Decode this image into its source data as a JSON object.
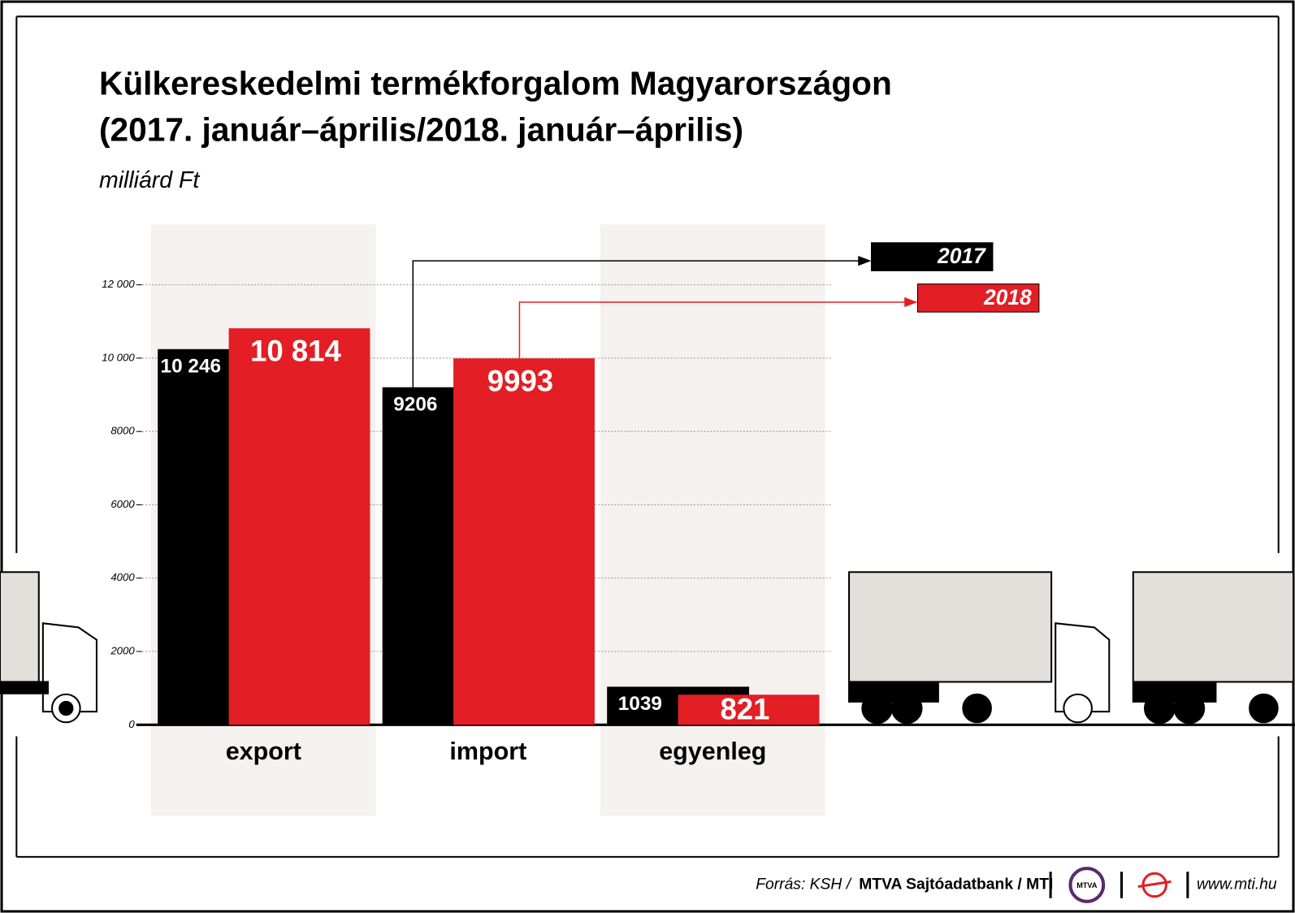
{
  "chart_data": {
    "type": "bar",
    "title": "Külkereskedelmi termékforgalom Magyarországon",
    "subtitle": "(2017. január–április/2018. január–április)",
    "y_axis_label": "milliárd Ft",
    "categories": [
      "export",
      "import",
      "egyenleg"
    ],
    "series": [
      {
        "name": "2017",
        "color": "#000000",
        "values": [
          10246,
          9206,
          1039
        ],
        "value_labels": [
          "10 246",
          "9206",
          "1039"
        ]
      },
      {
        "name": "2018",
        "color": "#e31e24",
        "values": [
          10814,
          9993,
          821
        ],
        "value_labels": [
          "10 814",
          "9993",
          "821"
        ]
      }
    ],
    "ylim": [
      0,
      12000
    ],
    "yticks": [
      0,
      2000,
      4000,
      6000,
      8000,
      {
        "value": 10000,
        "label": "10 000"
      },
      {
        "value": 12000,
        "label": "12 000"
      }
    ],
    "grid": true,
    "source": "Forrás: KSH /",
    "publisher": "MTVA Sajtóadatbank / MTI",
    "logo_text": "MTVA",
    "website": "www.mti.hu"
  }
}
